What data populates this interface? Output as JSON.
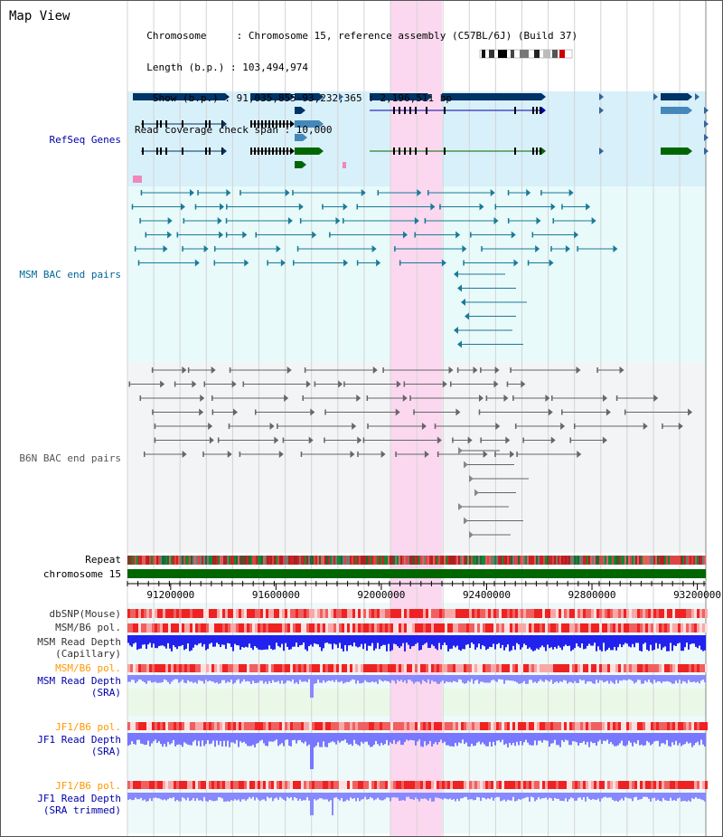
{
  "header": {
    "title": "Map View",
    "info_lines": [
      "  Chromosome     : Chromosome 15, reference assembly (C57BL/6J) (Build 37)",
      "  Length (b.p.) : 103,494,974",
      "   Show (b.p.) : 91,035,855-93,232,365 : 2,196,511 bp",
      "Read coverage check span : 10,000"
    ]
  },
  "tracks": {
    "refseq": {
      "label": "RefSeq Genes",
      "color": "#0000aa"
    },
    "msm_bac": {
      "label": "MSM BAC end pairs",
      "color": "#006699"
    },
    "b6n_bac": {
      "label": "B6N BAC end pairs",
      "color": "#555555"
    },
    "repeat": {
      "label": "Repeat"
    },
    "chromosome": {
      "label": "chromosome 15"
    },
    "dbsnp": {
      "label": "dbSNP(Mouse)"
    },
    "msm_b6_pol": {
      "label": "MSM/B6 pol."
    },
    "msm_depth_cap": {
      "label_1": "MSM Read Depth",
      "label_2": "(Capillary)"
    },
    "msm_b6_pol_2": {
      "label": "MSM/B6 pol.",
      "color": "#ff9900"
    },
    "msm_depth_sra": {
      "label_1": "MSM Read Depth",
      "label_2": "(SRA)",
      "color": "#0000aa"
    },
    "jf1_b6_pol": {
      "label": "JF1/B6 pol.",
      "color": "#ff9900"
    },
    "jf1_depth_sra": {
      "label_1": "JF1 Read Depth",
      "label_2": "(SRA)",
      "color": "#0000aa"
    },
    "jf1_b6_pol_2": {
      "label": "JF1/B6 pol.",
      "color": "#ff9900"
    },
    "jf1_depth_trim": {
      "label_1": "JF1 Read Depth",
      "label_2": "(SRA trimmed)",
      "color": "#0000aa"
    }
  },
  "axis": {
    "range": [
      91035855,
      93232365
    ],
    "ticks": [
      {
        "value": 91200000,
        "label": "91200000"
      },
      {
        "value": 91600000,
        "label": "91600000"
      },
      {
        "value": 92000000,
        "label": "92000000"
      },
      {
        "value": 92400000,
        "label": "92400000"
      },
      {
        "value": 92800000,
        "label": "92800000"
      },
      {
        "value": 93200000,
        "label": "93200000"
      }
    ],
    "highlight": [
      92035000,
      92230000
    ]
  },
  "colors": {
    "refseq_bg": "#d8f0fa",
    "msm_bg": "#e8fafa",
    "b6n_bg": "#f2f4f6",
    "gene_navy": "#003366",
    "gene_steel": "#4488bb",
    "gene_green": "#006600",
    "highlight": "#fbd8ef",
    "chromosome_bar": "#006600",
    "depth_blue": "#2222ee",
    "depth_light_blue": "#8888ff"
  }
}
